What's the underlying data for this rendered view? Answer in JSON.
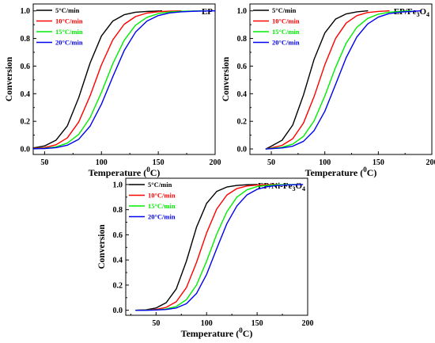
{
  "figure": {
    "chart_data": [
      {
        "type": "line",
        "title": "EP",
        "title_sub": "",
        "title_tail": "",
        "xlabel": "Temperature (",
        "xlabel_sup": "0",
        "xlabel_tail": "C)",
        "ylabel": "Conversion",
        "xlim": [
          40,
          200
        ],
        "ylim": [
          -0.04,
          1.05
        ],
        "xticks": [
          50,
          100,
          150,
          200
        ],
        "yticks": [
          0.0,
          0.2,
          0.4,
          0.6,
          0.8,
          1.0
        ],
        "ytick_labels": [
          "0.0",
          "0.2",
          "0.4",
          "0.6",
          "0.8",
          "1.0"
        ],
        "legend_position": "top-left",
        "series": [
          {
            "name": "5°C/min",
            "color": "#000000",
            "x": [
              40,
              50,
              60,
              70,
              80,
              90,
              100,
              110,
              120,
              130,
              140,
              150,
              153
            ],
            "y": [
              0.007,
              0.022,
              0.063,
              0.167,
              0.371,
              0.622,
              0.818,
              0.926,
              0.972,
              0.99,
              0.996,
              0.999,
              1.0
            ]
          },
          {
            "name": "10°C/min",
            "color": "#ff0000",
            "x": [
              40,
              50,
              60,
              70,
              80,
              90,
              100,
              110,
              120,
              130,
              140,
              150,
              160,
              170
            ],
            "y": [
              0.003,
              0.01,
              0.03,
              0.08,
              0.195,
              0.384,
              0.609,
              0.79,
              0.903,
              0.959,
              0.984,
              0.994,
              0.998,
              1.0
            ]
          },
          {
            "name": "15°C/min",
            "color": "#00ee00",
            "x": [
              40,
              50,
              60,
              70,
              80,
              90,
              100,
              110,
              120,
              130,
              140,
              150,
              160,
              170,
              180,
              190
            ],
            "y": [
              0.002,
              0.005,
              0.015,
              0.042,
              0.105,
              0.226,
              0.41,
              0.617,
              0.787,
              0.896,
              0.953,
              0.98,
              0.992,
              0.997,
              0.999,
              1.0
            ]
          },
          {
            "name": "20°C/min",
            "color": "#0000ee",
            "x": [
              40,
              50,
              60,
              70,
              80,
              90,
              100,
              110,
              120,
              130,
              140,
              150,
              160,
              170,
              180,
              190,
              200
            ],
            "y": [
              0.001,
              0.003,
              0.009,
              0.027,
              0.07,
              0.165,
              0.324,
              0.523,
              0.712,
              0.846,
              0.926,
              0.966,
              0.985,
              0.993,
              0.997,
              0.999,
              1.0
            ]
          }
        ]
      },
      {
        "type": "line",
        "title": "EP/Fe",
        "title_sub": "3",
        "title_tail": "O",
        "title_sub2": "4",
        "xlabel": "Temperature (",
        "xlabel_sup": "0",
        "xlabel_tail": "C)",
        "ylabel": "Conversion",
        "xlim": [
          30,
          200
        ],
        "ylim": [
          -0.04,
          1.05
        ],
        "xticks": [
          50,
          100,
          150,
          200
        ],
        "yticks": [
          0.0,
          0.2,
          0.4,
          0.6,
          0.8,
          1.0
        ],
        "ytick_labels": [
          "0.0",
          "0.2",
          "0.4",
          "0.6",
          "0.8",
          "1.0"
        ],
        "legend_position": "top-left",
        "series": [
          {
            "name": "5°C/min",
            "color": "#000000",
            "x": [
              45,
              50,
              60,
              70,
              80,
              90,
              100,
              110,
              120,
              130,
              140
            ],
            "y": [
              0.0,
              0.02,
              0.063,
              0.173,
              0.39,
              0.65,
              0.84,
              0.94,
              0.978,
              0.993,
              1.0
            ]
          },
          {
            "name": "10°C/min",
            "color": "#ff0000",
            "x": [
              45,
              50,
              60,
              70,
              80,
              90,
              100,
              110,
              120,
              130,
              140,
              150,
              160
            ],
            "y": [
              0.0,
              0.008,
              0.026,
              0.074,
              0.187,
              0.38,
              0.61,
              0.8,
              0.912,
              0.966,
              0.988,
              0.996,
              1.0
            ]
          },
          {
            "name": "15°C/min",
            "color": "#00ee00",
            "x": [
              45,
              50,
              60,
              70,
              80,
              90,
              100,
              110,
              120,
              130,
              140,
              150,
              160,
              170,
              180
            ],
            "y": [
              0.0,
              0.004,
              0.012,
              0.035,
              0.091,
              0.204,
              0.384,
              0.59,
              0.767,
              0.882,
              0.945,
              0.976,
              0.99,
              0.996,
              1.0
            ]
          },
          {
            "name": "20°C/min",
            "color": "#0000ee",
            "x": [
              45,
              50,
              60,
              70,
              80,
              90,
              100,
              110,
              120,
              130,
              140,
              150,
              160,
              170,
              180,
              190
            ],
            "y": [
              0.0,
              0.002,
              0.007,
              0.02,
              0.055,
              0.133,
              0.273,
              0.466,
              0.662,
              0.812,
              0.905,
              0.955,
              0.98,
              0.991,
              0.996,
              1.0
            ]
          }
        ]
      },
      {
        "type": "line",
        "title": "EP/Ni-Fe",
        "title_sub": "3",
        "title_tail": "O",
        "title_sub2": "4",
        "xlabel": "Temperature (",
        "xlabel_sup": "0",
        "xlabel_tail": "C)",
        "ylabel": "Conversion",
        "xlim": [
          20,
          200
        ],
        "ylim": [
          -0.04,
          1.05
        ],
        "xticks": [
          50,
          100,
          150,
          200
        ],
        "yticks": [
          0.0,
          0.2,
          0.4,
          0.6,
          0.8,
          1.0
        ],
        "ytick_labels": [
          "0.0",
          "0.2",
          "0.4",
          "0.6",
          "0.8",
          "1.0"
        ],
        "legend_position": "top-left",
        "series": [
          {
            "name": "5°C/min",
            "color": "#000000",
            "x": [
              30,
              40,
              50,
              60,
              70,
              80,
              90,
              100,
              110,
              120,
              130,
              140,
              150
            ],
            "y": [
              0.0,
              0.004,
              0.018,
              0.06,
              0.17,
              0.39,
              0.66,
              0.85,
              0.945,
              0.98,
              0.993,
              0.998,
              1.0
            ]
          },
          {
            "name": "10°C/min",
            "color": "#ff0000",
            "x": [
              30,
              40,
              50,
              60,
              70,
              80,
              90,
              100,
              110,
              120,
              130,
              140,
              150,
              160,
              170
            ],
            "y": [
              0.0,
              0.002,
              0.007,
              0.023,
              0.068,
              0.18,
              0.38,
              0.615,
              0.805,
              0.916,
              0.968,
              0.988,
              0.996,
              0.999,
              1.0
            ]
          },
          {
            "name": "15°C/min",
            "color": "#00ee00",
            "x": [
              30,
              40,
              50,
              60,
              70,
              80,
              90,
              100,
              110,
              120,
              130,
              140,
              150,
              160,
              170,
              180,
              190
            ],
            "y": [
              0.0,
              0.001,
              0.003,
              0.01,
              0.03,
              0.084,
              0.2,
              0.39,
              0.605,
              0.783,
              0.9,
              0.958,
              0.984,
              0.994,
              0.998,
              0.999,
              1.0
            ]
          },
          {
            "name": "20°C/min",
            "color": "#0000ee",
            "x": [
              30,
              40,
              50,
              60,
              70,
              80,
              90,
              100,
              110,
              120,
              130,
              140,
              150,
              160,
              170,
              180,
              190,
              195
            ],
            "y": [
              0.0,
              0.0,
              0.002,
              0.006,
              0.018,
              0.052,
              0.133,
              0.285,
              0.49,
              0.688,
              0.83,
              0.918,
              0.962,
              0.983,
              0.993,
              0.997,
              0.999,
              1.0
            ]
          }
        ]
      }
    ]
  }
}
